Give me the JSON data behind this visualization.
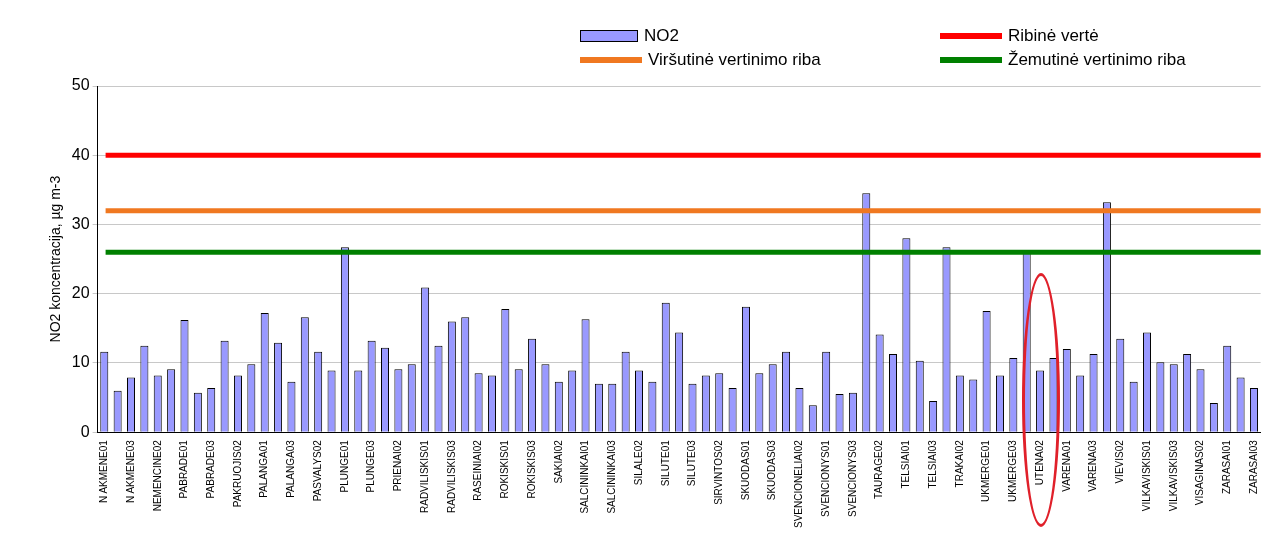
{
  "chart_data": {
    "type": "bar",
    "ylabel": "NO2 koncentracija, µg m-3",
    "categories": [
      "N AKMENE01",
      null,
      "N AKMENE03",
      null,
      "NEMENCINE02",
      null,
      "PABRADE01",
      null,
      "PABRADE03",
      null,
      "PAKRUOJIS02",
      null,
      "PALANGA01",
      null,
      "PALANGA03",
      null,
      "PASVALYS02",
      null,
      "PLUNGE01",
      null,
      "PLUNGE03",
      null,
      "PRIENAI02",
      null,
      "RADVILISKIS01",
      null,
      "RADVILISKIS03",
      null,
      "RASEINIAI02",
      null,
      "ROKISKIS01",
      null,
      "ROKISKIS03",
      null,
      "SAKIAI02",
      null,
      "SALCININKAI01",
      null,
      "SALCININKAI03",
      null,
      "SILALE02",
      null,
      "SILUTE01",
      null,
      "SILUTE03",
      null,
      "SIRVINTOS02",
      null,
      "SKUODAS01",
      null,
      "SKUODAS03",
      null,
      "SVENCIONELIAI02",
      null,
      "SVENCIONYS01",
      null,
      "SVENCIONYS03",
      null,
      "TAURAGE02",
      null,
      "TELSIAI01",
      null,
      "TELSIAI03",
      null,
      "TRAKAI02",
      null,
      "UKMERGE01",
      null,
      "UKMERGE03",
      null,
      "UTENA02",
      null,
      "VARENA01",
      null,
      "VARENA03",
      null,
      "VIEVIS02",
      null,
      "VILKAVISKIS01",
      null,
      "VILKAVISKIS03",
      null,
      "VISAGINAS02",
      null,
      "ZARASAI01",
      null,
      "ZARASAI03"
    ],
    "series": [
      {
        "name": "NO2",
        "color": "#9999ff",
        "values": [
          11.6,
          6.0,
          7.9,
          12.5,
          8.2,
          9.1,
          16.2,
          5.7,
          6.4,
          13.2,
          8.2,
          9.8,
          17.2,
          12.9,
          7.3,
          16.6,
          11.6,
          8.9,
          26.7,
          8.9,
          13.2,
          12.2,
          9.1,
          9.8,
          20.9,
          12.5,
          16.0,
          16.6,
          8.5,
          8.2,
          17.8,
          9.1,
          13.5,
          9.8,
          7.3,
          8.9,
          16.3,
          7.0,
          7.0,
          11.6,
          8.9,
          7.3,
          18.7,
          14.4,
          7.0,
          8.2,
          8.5,
          6.4,
          18.1,
          8.5,
          9.8,
          11.6,
          6.4,
          3.9,
          11.6,
          5.5,
          5.7,
          34.5,
          14.1,
          11.3,
          28.0,
          10.3,
          4.5,
          26.7,
          8.2,
          7.6,
          17.5,
          8.2,
          10.7,
          25.9,
          8.9,
          10.7,
          12.0,
          8.2,
          11.3,
          33.2,
          13.5,
          7.3,
          14.4,
          10.1,
          9.8,
          11.3,
          9.1,
          4.2,
          12.5,
          7.9,
          6.4
        ]
      }
    ],
    "ref_lines": [
      {
        "axis": "y",
        "value": 40,
        "label": "Ribinė vertė",
        "color": "#ff0000"
      },
      {
        "axis": "y",
        "value": 32,
        "label": "Viršutinė vertinimo riba",
        "color": "#f07820"
      },
      {
        "axis": "y",
        "value": 26,
        "label": "Žemutinė vertinimo riba",
        "color": "#008000"
      }
    ],
    "ylim": [
      0,
      50
    ],
    "yticks": [
      0,
      10,
      20,
      30,
      40,
      50
    ],
    "grid": "y",
    "legend": "top right"
  }
}
